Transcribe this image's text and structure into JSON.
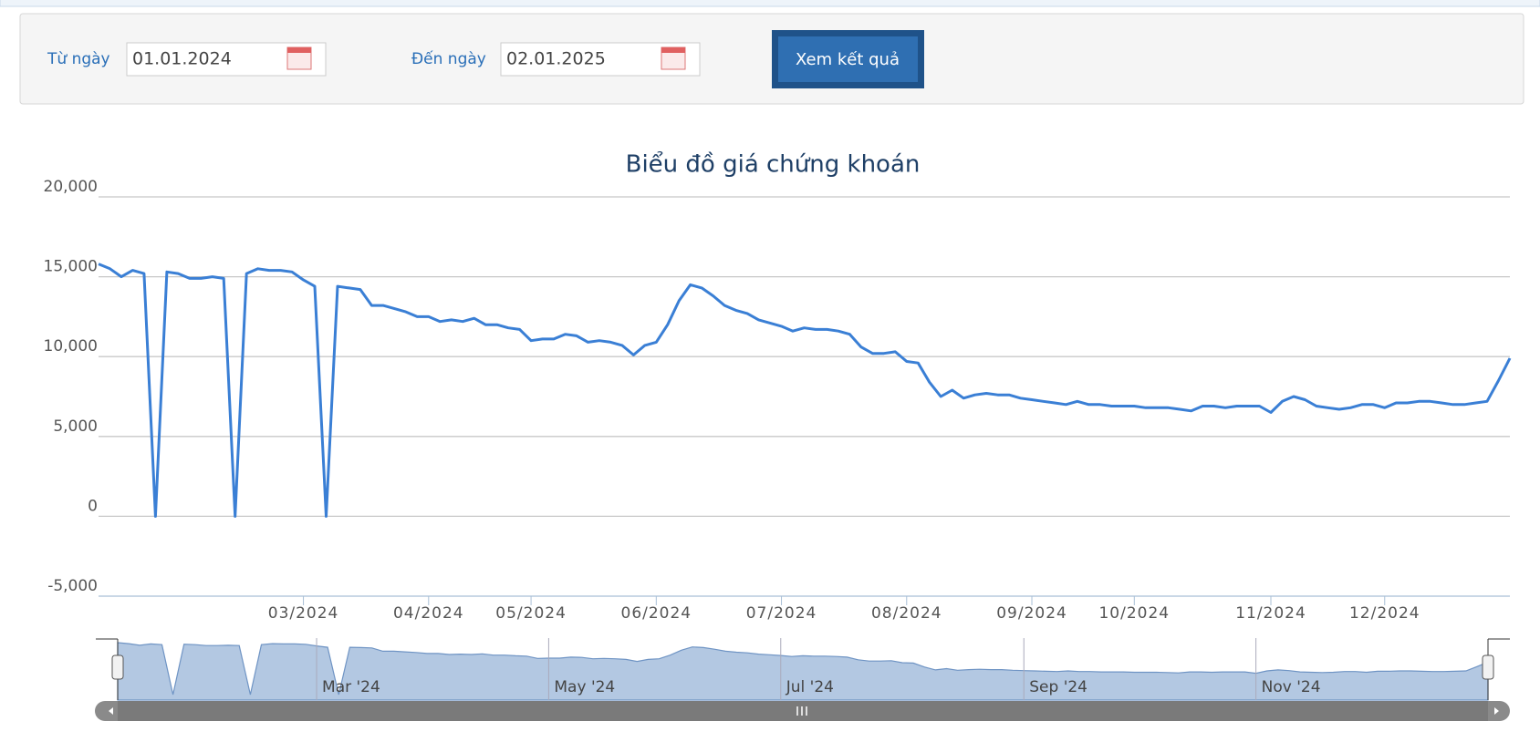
{
  "form": {
    "from_label": "Từ ngày",
    "from_value": "01.01.2024",
    "to_label": "Đến ngày",
    "to_value": "02.01.2025",
    "button": "Xem kết quả"
  },
  "chart_data": {
    "type": "line",
    "title": "Biểu đồ giá chứng khoán",
    "color": "#3a7fd5",
    "grid": true,
    "categories": [
      null,
      null,
      null,
      null,
      null,
      null,
      null,
      null,
      null,
      null,
      null,
      null,
      null,
      null,
      null,
      null,
      null,
      null,
      "03/2024",
      null,
      null,
      null,
      null,
      null,
      null,
      null,
      null,
      null,
      null,
      "04/2024",
      null,
      null,
      null,
      null,
      null,
      null,
      null,
      null,
      "05/2024",
      null,
      null,
      null,
      null,
      null,
      null,
      null,
      null,
      null,
      null,
      "06/2024",
      null,
      null,
      null,
      null,
      null,
      null,
      null,
      null,
      null,
      null,
      "07/2024",
      null,
      null,
      null,
      null,
      null,
      null,
      null,
      null,
      null,
      null,
      "08/2024",
      null,
      null,
      null,
      null,
      null,
      null,
      null,
      null,
      null,
      null,
      "09/2024",
      null,
      null,
      null,
      null,
      null,
      null,
      null,
      null,
      "10/2024",
      null,
      null,
      null,
      null,
      null,
      null,
      null,
      null,
      null,
      null,
      null,
      "11/2024",
      null,
      null,
      null,
      null,
      null,
      null,
      null,
      null,
      null,
      "12/2024",
      null,
      null,
      null,
      null,
      null,
      null,
      null,
      null,
      null,
      null,
      null
    ],
    "values": [
      15800,
      15500,
      15000,
      15400,
      15200,
      0,
      15300,
      15200,
      14900,
      14900,
      15000,
      14900,
      0,
      15200,
      15500,
      15400,
      15400,
      15300,
      14800,
      14400,
      0,
      14400,
      14300,
      14200,
      13200,
      13200,
      13000,
      12800,
      12500,
      12500,
      12200,
      12300,
      12200,
      12400,
      12000,
      12000,
      11800,
      11700,
      11000,
      11100,
      11100,
      11400,
      11300,
      10900,
      11000,
      10900,
      10700,
      10100,
      10700,
      10900,
      12000,
      13500,
      14500,
      14300,
      13800,
      13200,
      12900,
      12700,
      12300,
      12100,
      11900,
      11600,
      11800,
      11700,
      11700,
      11600,
      11400,
      10600,
      10200,
      10200,
      10300,
      9700,
      9600,
      8400,
      7500,
      7900,
      7400,
      7600,
      7700,
      7600,
      7600,
      7400,
      7300,
      7200,
      7100,
      7000,
      7200,
      7000,
      7000,
      6900,
      6900,
      6900,
      6800,
      6800,
      6800,
      6700,
      6600,
      6900,
      6900,
      6800,
      6900,
      6900,
      6900,
      6500,
      7200,
      7500,
      7300,
      6900,
      6800,
      6700,
      6800,
      7000,
      7000,
      6800,
      7100,
      7100,
      7200,
      7200,
      7100,
      7000,
      7000,
      7100,
      7200,
      8500,
      9900
    ],
    "ylim": [
      -5000,
      20000
    ],
    "yticks": [
      {
        "value": -5000,
        "label": "-5,000"
      },
      0,
      {
        "value": 5000,
        "label": "5,000"
      },
      {
        "value": 10000,
        "label": "10,000"
      },
      {
        "value": 15000,
        "label": "15,000"
      },
      {
        "value": 20000,
        "label": "20,000"
      }
    ],
    "navigator": {
      "ticks": [
        {
          "value": 18,
          "label": "Mar '24"
        },
        {
          "value": 39,
          "label": "May '24"
        },
        {
          "value": 60,
          "label": "Jul '24"
        },
        {
          "value": 82,
          "label": "Sep '24"
        },
        {
          "value": 103,
          "label": "Nov '24"
        }
      ]
    }
  }
}
